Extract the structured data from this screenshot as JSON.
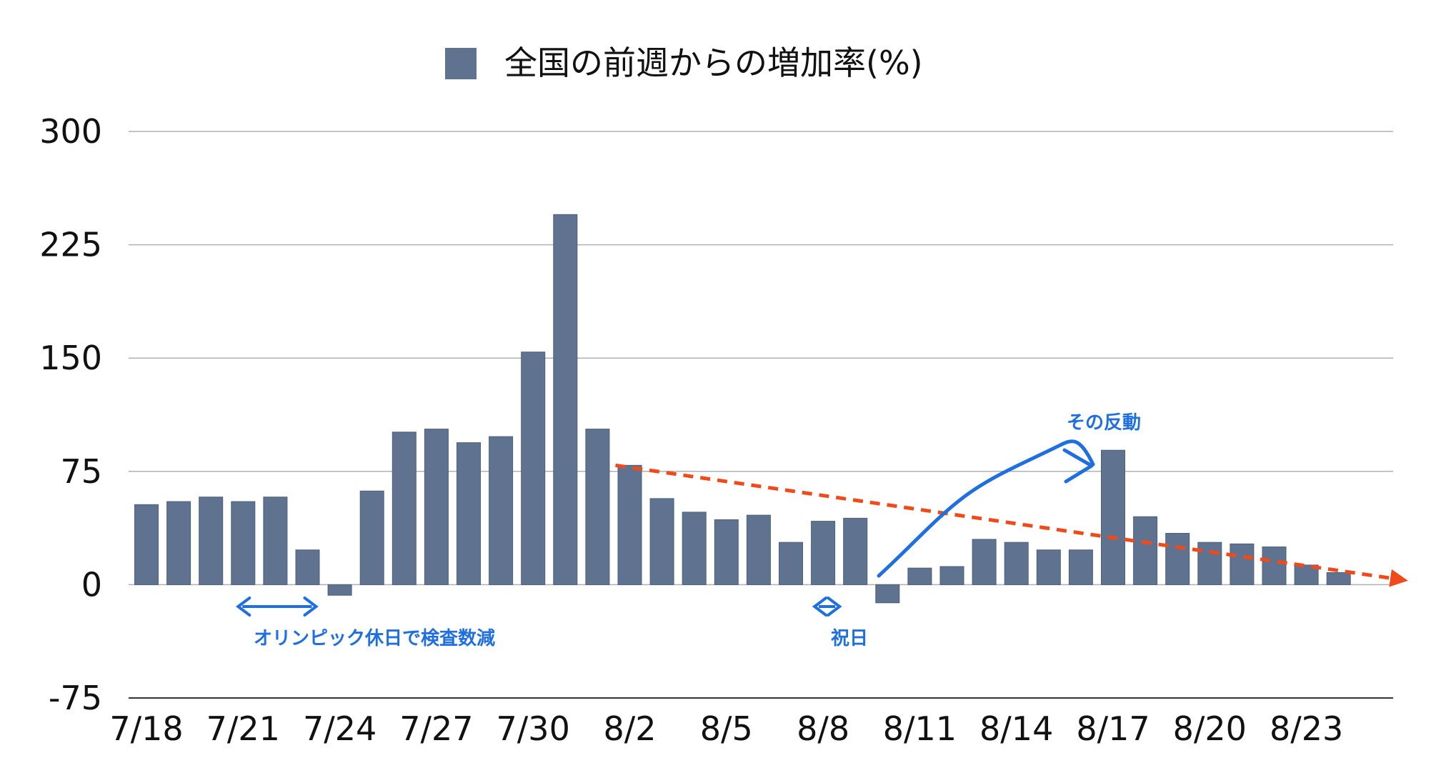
{
  "chart_data": {
    "type": "bar",
    "title": "",
    "xlabel": "",
    "ylabel": "",
    "ylim": [
      -75,
      300
    ],
    "yticks": [
      300,
      225,
      150,
      75,
      0,
      -75
    ],
    "grid": true,
    "legend_position": "top",
    "categories": [
      "7/18",
      "7/19",
      "7/20",
      "7/21",
      "7/22",
      "7/23",
      "7/24",
      "7/25",
      "7/26",
      "7/27",
      "7/28",
      "7/29",
      "7/30",
      "7/31",
      "8/1",
      "8/2",
      "8/3",
      "8/4",
      "8/5",
      "8/6",
      "8/7",
      "8/8",
      "8/9",
      "8/10",
      "8/11",
      "8/12",
      "8/13",
      "8/14",
      "8/15",
      "8/16",
      "8/17",
      "8/18",
      "8/19",
      "8/20",
      "8/21",
      "8/22",
      "8/23",
      "8/24"
    ],
    "x_tick_labels": [
      "7/18",
      "7/21",
      "7/24",
      "7/27",
      "7/30",
      "8/2",
      "8/5",
      "8/8",
      "8/11",
      "8/14",
      "8/17",
      "8/20",
      "8/23"
    ],
    "series": [
      {
        "name": "全国の前週からの増加率(%)",
        "color": "#5f7391",
        "values": [
          53,
          55,
          58,
          55,
          58,
          23,
          -7,
          62,
          101,
          103,
          94,
          98,
          154,
          245,
          103,
          79,
          57,
          48,
          43,
          46,
          28,
          42,
          44,
          -12,
          11,
          12,
          30,
          28,
          23,
          23,
          89,
          45,
          34,
          28,
          27,
          25,
          13,
          8
        ]
      }
    ],
    "trend_line": {
      "color": "#f04a1a",
      "from": {
        "x": "8/2",
        "y": 79
      },
      "to": {
        "x": "8/25",
        "y": 3
      }
    },
    "annotations": [
      {
        "text": "オリンピック休日で検査数減",
        "color": "#1f6fe0",
        "from": "7/21",
        "to": "7/23"
      },
      {
        "text": "祝日",
        "color": "#1f6fe0",
        "from": "8/8",
        "to": "8/9"
      },
      {
        "text": "その反動",
        "color": "#1f6fe0",
        "from": "8/10",
        "to": "8/16"
      }
    ]
  }
}
